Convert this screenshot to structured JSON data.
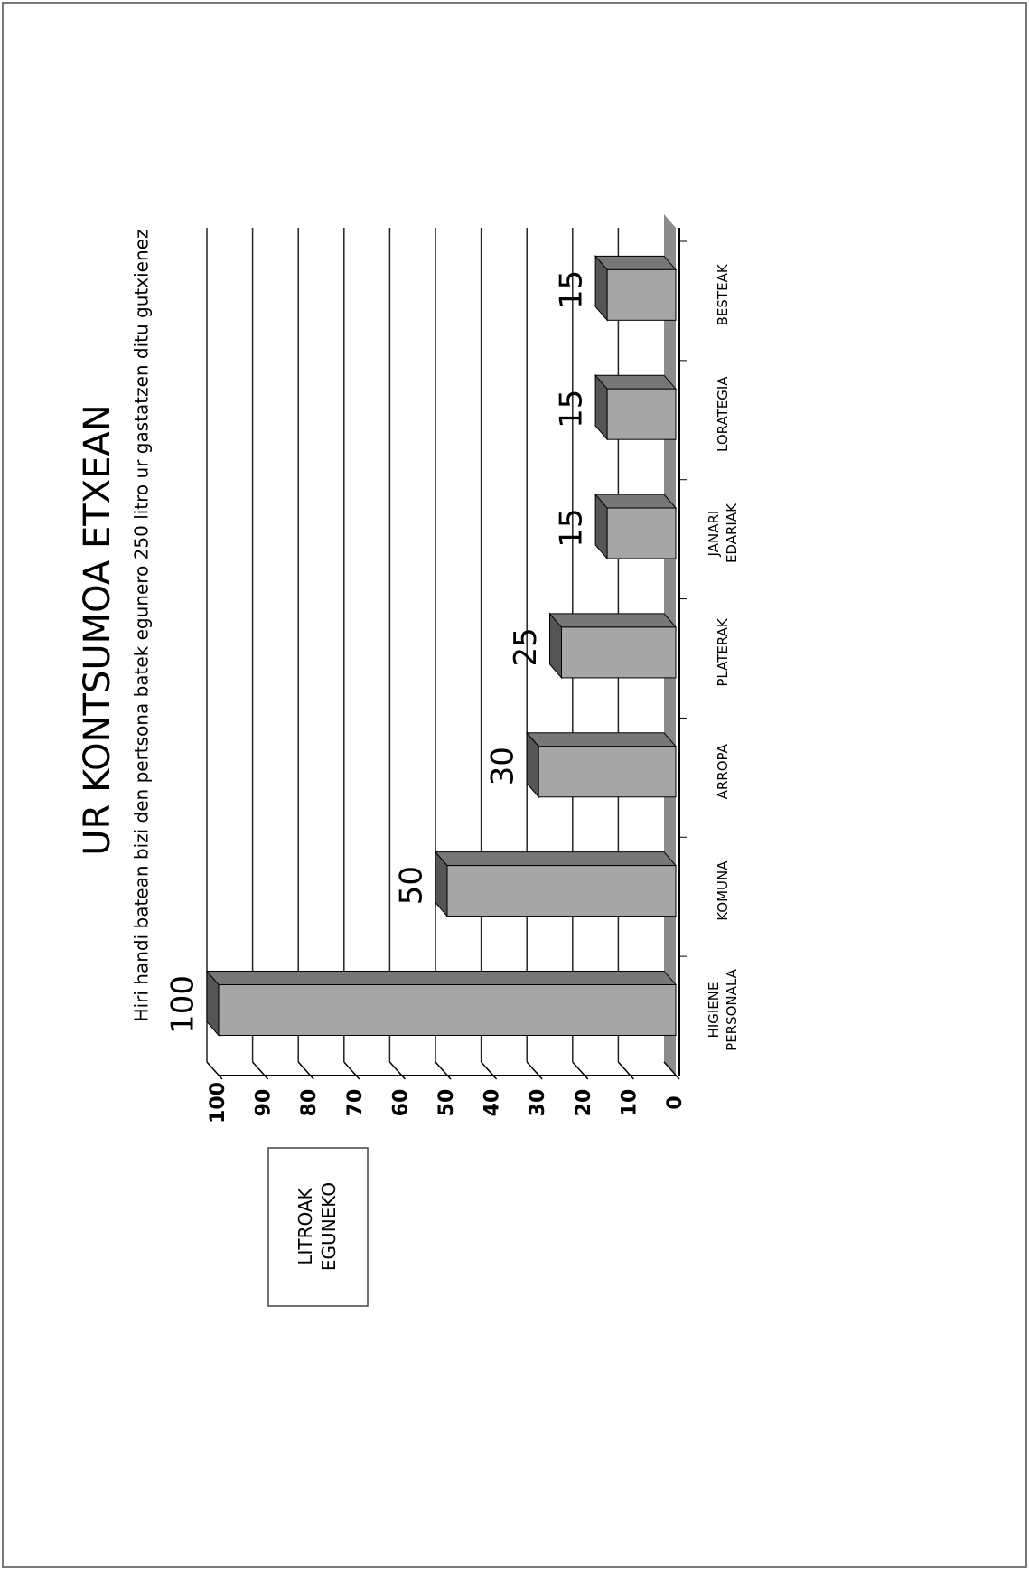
{
  "chart_data": {
    "type": "bar",
    "title": "UR KONTSUMOA ETXEAN",
    "subtitle": "Hiri handi batean bizi den pertsona batek egunero 250 litro ur gastatzen ditu gutxienez",
    "ylabel": "LITROAK EGUNEKO",
    "categories": [
      "HIGIENE PERSONALA",
      "KOMUNA",
      "ARROPA",
      "PLATERAK",
      "JANARI EDARIAK",
      "LORATEGIA",
      "BESTEAK"
    ],
    "values": [
      100,
      50,
      30,
      25,
      15,
      15,
      15
    ],
    "color": "#a6a6a6",
    "top_color": "#555555",
    "ylim": [
      0,
      100
    ],
    "yticks": [
      0,
      10,
      20,
      30,
      40,
      50,
      60,
      70,
      80,
      90,
      100
    ],
    "grid": true
  }
}
